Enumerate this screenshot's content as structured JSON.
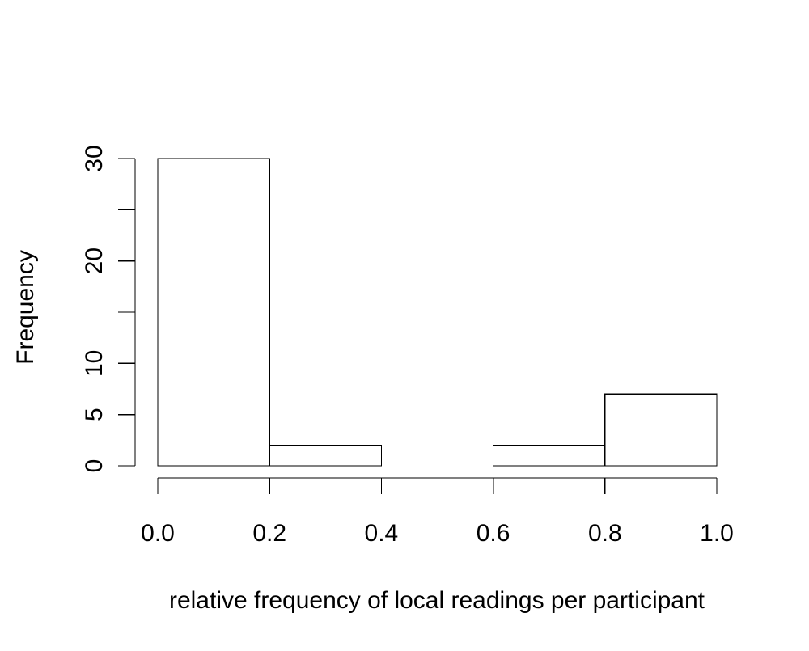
{
  "chart_data": {
    "type": "bar",
    "title": "",
    "xlabel": "relative frequency of local readings per participant",
    "ylabel": "Frequency",
    "bins": [
      {
        "from": 0.0,
        "to": 0.2,
        "count": 30
      },
      {
        "from": 0.2,
        "to": 0.4,
        "count": 2
      },
      {
        "from": 0.4,
        "to": 0.6,
        "count": 0
      },
      {
        "from": 0.6,
        "to": 0.8,
        "count": 2
      },
      {
        "from": 0.8,
        "to": 1.0,
        "count": 7
      }
    ],
    "xlim": [
      0,
      1
    ],
    "ylim": [
      0,
      30
    ],
    "x_ticks": [
      0.0,
      0.2,
      0.4,
      0.6,
      0.8,
      1.0
    ],
    "x_tick_labels": [
      "0.0",
      "0.2",
      "0.4",
      "0.6",
      "0.8",
      "1.0"
    ],
    "y_ticks": [
      0,
      5,
      10,
      15,
      20,
      25,
      30
    ],
    "y_tick_labels": [
      "0",
      "5",
      "10",
      "",
      "20",
      "",
      "30"
    ],
    "grid": false,
    "legend": "none",
    "bar_fill": "#ffffff",
    "bar_stroke": "#000000"
  }
}
